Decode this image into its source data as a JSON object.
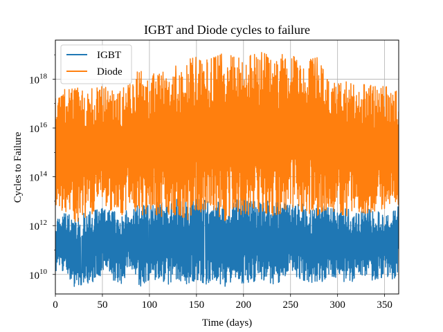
{
  "chart_data": {
    "type": "line",
    "title": "IGBT and Diode cycles to failure",
    "xlabel": "Time (days)",
    "ylabel": "Cycles to Failure",
    "xlim": [
      0,
      365
    ],
    "ylim_log10": [
      9.2,
      19.6
    ],
    "yscale": "log",
    "grid": true,
    "legend_position": "top-left",
    "x_ticks": [
      0,
      50,
      100,
      150,
      200,
      250,
      300,
      350
    ],
    "y_ticks": [
      {
        "base": "10",
        "exp": "10",
        "log10": 10
      },
      {
        "base": "10",
        "exp": "12",
        "log10": 12
      },
      {
        "base": "10",
        "exp": "14",
        "log10": 14
      },
      {
        "base": "10",
        "exp": "16",
        "log10": 16
      },
      {
        "base": "10",
        "exp": "18",
        "log10": 18
      }
    ],
    "series": [
      {
        "name": "IGBT",
        "color": "#1f77b4",
        "envelope_x": [
          0,
          10,
          20,
          30,
          40,
          50,
          60,
          70,
          80,
          90,
          100,
          110,
          120,
          130,
          140,
          150,
          160,
          170,
          180,
          190,
          200,
          210,
          220,
          230,
          240,
          250,
          260,
          270,
          280,
          290,
          300,
          310,
          320,
          330,
          340,
          350,
          360,
          365
        ],
        "envelope_low_log10": [
          10.0,
          10.2,
          9.5,
          9.6,
          9.7,
          10.0,
          9.8,
          9.6,
          10.3,
          9.5,
          9.8,
          9.7,
          9.6,
          9.7,
          9.5,
          9.8,
          9.6,
          9.7,
          9.5,
          9.8,
          9.6,
          9.7,
          9.8,
          9.6,
          9.7,
          10.1,
          9.8,
          9.7,
          9.6,
          9.9,
          9.7,
          9.6,
          9.8,
          9.7,
          9.8,
          9.9,
          9.8,
          10.2
        ],
        "envelope_high_log10": [
          12.3,
          12.5,
          12.4,
          12.5,
          12.6,
          12.7,
          12.6,
          12.5,
          12.7,
          12.9,
          12.8,
          13.0,
          12.8,
          13.1,
          13.0,
          13.2,
          13.0,
          12.9,
          13.1,
          13.0,
          13.2,
          13.0,
          12.9,
          13.1,
          13.0,
          12.8,
          13.0,
          12.6,
          12.9,
          12.8,
          12.6,
          12.7,
          12.5,
          12.7,
          12.6,
          12.5,
          12.6,
          12.8
        ]
      },
      {
        "name": "Diode",
        "color": "#ff7f0e",
        "envelope_x": [
          0,
          10,
          20,
          30,
          40,
          50,
          60,
          70,
          80,
          90,
          100,
          110,
          120,
          130,
          140,
          150,
          160,
          170,
          180,
          190,
          200,
          210,
          220,
          230,
          240,
          250,
          260,
          270,
          280,
          290,
          300,
          310,
          320,
          330,
          340,
          350,
          360,
          365
        ],
        "envelope_low_log10": [
          12.7,
          12.6,
          12.1,
          12.3,
          12.5,
          12.8,
          12.6,
          12.4,
          12.9,
          12.3,
          12.6,
          12.4,
          12.3,
          12.5,
          12.2,
          12.7,
          12.4,
          12.5,
          12.2,
          12.6,
          12.4,
          12.5,
          12.6,
          12.4,
          12.5,
          12.8,
          12.6,
          12.5,
          12.4,
          12.7,
          12.5,
          12.4,
          12.6,
          12.5,
          12.6,
          12.7,
          12.6,
          12.9
        ],
        "envelope_high_log10": [
          17.5,
          17.6,
          17.6,
          17.7,
          17.6,
          17.7,
          17.6,
          17.6,
          17.8,
          18.5,
          17.9,
          18.6,
          17.9,
          18.7,
          18.8,
          18.9,
          18.8,
          18.9,
          19.1,
          18.9,
          19.0,
          19.0,
          19.1,
          18.9,
          19.0,
          19.1,
          18.6,
          18.8,
          18.9,
          17.9,
          17.8,
          17.9,
          17.7,
          17.8,
          17.7,
          17.7,
          17.7,
          17.6
        ]
      }
    ]
  }
}
